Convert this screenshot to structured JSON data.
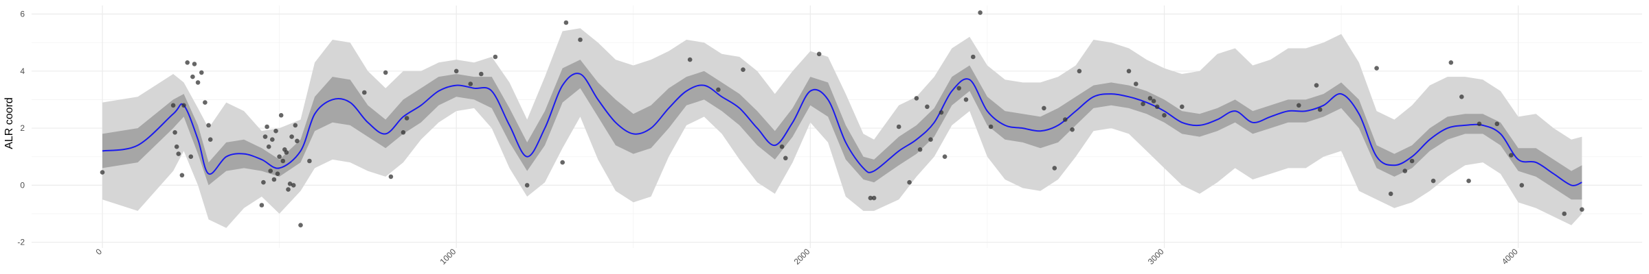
{
  "chart_data": {
    "type": "line",
    "title": "",
    "xlabel": "",
    "ylabel": "ALR coord",
    "xlim": [
      -200,
      4350
    ],
    "ylim": [
      -2.2,
      6.3
    ],
    "x_ticks": [
      0,
      1000,
      2000,
      3000,
      4000
    ],
    "y_ticks": [
      -2,
      0,
      2,
      4,
      6
    ],
    "x_tick_labels": [
      "0",
      "1000",
      "2000",
      "3000",
      "4000"
    ],
    "y_tick_labels": [
      "-2",
      "0",
      "2",
      "4",
      "6"
    ],
    "grid": true,
    "legend": "none",
    "colors": {
      "mean_line": "#1a1aee",
      "inner_band": "#a6a6a6",
      "outer_band": "#d6d6d6",
      "points": "#333333",
      "grid": "#ebebeb"
    },
    "mean": {
      "x": [
        0,
        100,
        200,
        230,
        270,
        300,
        350,
        400,
        450,
        500,
        560,
        600,
        650,
        700,
        750,
        800,
        850,
        900,
        950,
        1000,
        1050,
        1100,
        1150,
        1200,
        1250,
        1300,
        1350,
        1400,
        1450,
        1500,
        1550,
        1600,
        1650,
        1700,
        1750,
        1800,
        1850,
        1900,
        1950,
        2000,
        2050,
        2100,
        2150,
        2180,
        2250,
        2300,
        2350,
        2400,
        2450,
        2500,
        2550,
        2600,
        2650,
        2700,
        2750,
        2800,
        2850,
        2900,
        2950,
        3000,
        3050,
        3100,
        3150,
        3200,
        3250,
        3300,
        3350,
        3400,
        3450,
        3500,
        3550,
        3600,
        3650,
        3700,
        3750,
        3800,
        3850,
        3900,
        3950,
        4000,
        4050,
        4100,
        4150,
        4180
      ],
      "y": [
        1.2,
        1.4,
        2.5,
        2.8,
        1.6,
        0.4,
        1.0,
        1.1,
        0.9,
        0.6,
        1.2,
        2.5,
        3.0,
        2.9,
        2.2,
        1.8,
        2.4,
        2.8,
        3.3,
        3.5,
        3.4,
        3.3,
        2.1,
        1.0,
        2.0,
        3.5,
        3.9,
        3.0,
        2.2,
        1.8,
        2.0,
        2.7,
        3.3,
        3.5,
        3.1,
        2.7,
        2.0,
        1.4,
        2.2,
        3.3,
        3.0,
        1.5,
        0.6,
        0.5,
        1.2,
        1.6,
        2.2,
        3.3,
        3.7,
        2.6,
        2.1,
        2.0,
        1.9,
        2.1,
        2.6,
        3.1,
        3.2,
        3.1,
        2.9,
        2.6,
        2.2,
        2.1,
        2.3,
        2.6,
        2.2,
        2.4,
        2.6,
        2.6,
        2.8,
        3.2,
        2.5,
        1.0,
        0.7,
        1.0,
        1.6,
        2.0,
        2.1,
        2.1,
        1.8,
        0.9,
        0.8,
        0.4,
        0.0,
        0.1
      ]
    },
    "inner_band": {
      "lower": [
        0.6,
        0.8,
        2.0,
        2.4,
        1.1,
        0.0,
        0.5,
        0.6,
        0.5,
        0.3,
        0.8,
        1.9,
        2.2,
        2.1,
        1.7,
        1.3,
        1.8,
        2.2,
        2.8,
        3.1,
        3.0,
        2.7,
        1.5,
        0.5,
        1.4,
        2.9,
        3.4,
        2.4,
        1.4,
        1.1,
        1.3,
        2.0,
        2.8,
        3.0,
        2.6,
        2.1,
        1.4,
        0.9,
        1.7,
        2.8,
        2.4,
        0.9,
        0.2,
        0.1,
        0.7,
        1.1,
        1.7,
        2.8,
        3.3,
        2.1,
        1.6,
        1.5,
        1.3,
        1.5,
        2.1,
        2.7,
        2.8,
        2.7,
        2.5,
        2.2,
        1.8,
        1.7,
        1.9,
        2.2,
        1.8,
        2.0,
        2.2,
        2.2,
        2.4,
        2.7,
        2.0,
        0.6,
        0.3,
        0.6,
        1.2,
        1.6,
        1.8,
        1.8,
        1.4,
        0.5,
        0.3,
        -0.1,
        -0.5,
        -0.5
      ],
      "upper": [
        1.8,
        2.0,
        3.0,
        3.2,
        2.1,
        0.8,
        1.5,
        1.6,
        1.3,
        0.9,
        1.6,
        3.1,
        3.8,
        3.7,
        2.8,
        2.3,
        3.0,
        3.4,
        3.8,
        3.9,
        3.8,
        3.8,
        2.7,
        1.5,
        2.6,
        4.1,
        4.4,
        3.6,
        3.0,
        2.5,
        2.8,
        3.4,
        3.8,
        4.0,
        3.6,
        3.2,
        2.6,
        1.9,
        2.7,
        3.8,
        3.6,
        2.1,
        1.0,
        0.9,
        1.7,
        2.1,
        2.7,
        3.8,
        4.2,
        3.1,
        2.6,
        2.5,
        2.4,
        2.7,
        3.1,
        3.5,
        3.6,
        3.5,
        3.3,
        3.0,
        2.6,
        2.5,
        2.7,
        3.0,
        2.6,
        2.8,
        3.0,
        3.0,
        3.2,
        3.6,
        3.0,
        1.4,
        1.1,
        1.4,
        2.0,
        2.4,
        2.5,
        2.5,
        2.2,
        1.3,
        1.3,
        0.9,
        0.5,
        0.7
      ]
    },
    "outer_band": {
      "lower": [
        -0.5,
        -0.9,
        0.5,
        1.2,
        0.0,
        -1.2,
        -1.5,
        -0.8,
        -0.4,
        -1.0,
        -0.2,
        0.6,
        0.9,
        0.8,
        0.5,
        0.3,
        0.8,
        1.6,
        2.2,
        2.6,
        2.7,
        2.0,
        0.6,
        -0.4,
        0.1,
        1.3,
        2.4,
        0.9,
        -0.2,
        -0.6,
        -0.4,
        1.0,
        2.1,
        2.4,
        1.8,
        0.9,
        0.1,
        -0.3,
        0.8,
        2.2,
        1.5,
        -0.4,
        -0.9,
        -0.9,
        -0.5,
        0.3,
        1.0,
        2.1,
        2.6,
        1.0,
        0.2,
        -0.1,
        -0.2,
        0.2,
        1.0,
        1.9,
        2.0,
        1.8,
        1.2,
        0.6,
        0.0,
        -0.3,
        0.1,
        0.6,
        0.2,
        0.4,
        0.6,
        0.6,
        1.0,
        1.2,
        -0.2,
        -0.5,
        -0.8,
        -0.6,
        -0.2,
        0.3,
        0.7,
        0.8,
        0.4,
        -0.6,
        -0.8,
        -1.1,
        -1.4,
        -1.0
      ],
      "upper": [
        2.9,
        3.1,
        3.9,
        3.6,
        2.7,
        2.0,
        2.9,
        2.6,
        1.9,
        2.0,
        2.3,
        4.3,
        5.1,
        5.0,
        4.0,
        3.4,
        4.0,
        4.0,
        4.3,
        4.4,
        4.3,
        4.5,
        3.6,
        2.3,
        3.8,
        5.4,
        5.5,
        5.0,
        4.4,
        4.2,
        4.4,
        4.7,
        5.1,
        5.0,
        4.6,
        4.5,
        4.0,
        3.2,
        4.0,
        4.7,
        4.5,
        3.2,
        1.8,
        1.6,
        2.8,
        3.1,
        3.8,
        4.8,
        5.2,
        4.2,
        3.7,
        3.6,
        3.6,
        3.8,
        4.2,
        5.1,
        5.0,
        4.8,
        4.4,
        4.1,
        3.9,
        4.0,
        4.6,
        4.8,
        4.2,
        4.4,
        4.8,
        4.8,
        5.0,
        5.3,
        4.3,
        2.6,
        2.3,
        2.8,
        3.5,
        3.8,
        3.8,
        3.7,
        3.3,
        2.4,
        2.5,
        2.0,
        1.6,
        1.7
      ]
    },
    "points": {
      "x": [
        0,
        200,
        205,
        210,
        215,
        225,
        230,
        240,
        250,
        255,
        260,
        270,
        280,
        290,
        300,
        305,
        450,
        455,
        460,
        465,
        470,
        475,
        480,
        485,
        490,
        495,
        500,
        505,
        510,
        515,
        520,
        525,
        530,
        535,
        540,
        545,
        550,
        560,
        585,
        740,
        800,
        815,
        850,
        860,
        1000,
        1040,
        1070,
        1110,
        1200,
        1300,
        1310,
        1350,
        1660,
        1740,
        1810,
        1920,
        1930,
        2025,
        2170,
        2180,
        2250,
        2280,
        2300,
        2310,
        2330,
        2340,
        2370,
        2380,
        2420,
        2440,
        2460,
        2480,
        2510,
        2660,
        2690,
        2720,
        2740,
        2760,
        2900,
        2920,
        2940,
        2960,
        2970,
        2980,
        3000,
        3050,
        3380,
        3430,
        3440,
        3600,
        3640,
        3680,
        3700,
        3760,
        3810,
        3840,
        3860,
        3890,
        3940,
        3980,
        4010,
        4130,
        4180
      ],
      "y": [
        0.45,
        2.8,
        1.85,
        1.35,
        1.1,
        0.35,
        2.8,
        4.3,
        1.0,
        3.8,
        4.25,
        3.6,
        3.95,
        2.9,
        2.1,
        1.6,
        -0.7,
        0.1,
        1.7,
        2.05,
        1.35,
        0.5,
        1.6,
        0.2,
        1.9,
        0.4,
        1.0,
        2.45,
        0.85,
        1.25,
        1.15,
        -0.15,
        0.05,
        1.7,
        0.0,
        2.1,
        1.55,
        -1.4,
        0.85,
        3.25,
        3.95,
        0.3,
        1.85,
        2.35,
        4.0,
        3.55,
        3.9,
        4.5,
        0.0,
        0.8,
        5.7,
        5.1,
        4.4,
        3.35,
        4.05,
        1.35,
        0.95,
        4.6,
        -0.45,
        -0.45,
        2.05,
        0.1,
        3.05,
        1.25,
        2.75,
        1.6,
        2.55,
        1.0,
        3.4,
        3.0,
        4.5,
        6.05,
        2.05,
        2.7,
        0.6,
        2.3,
        1.95,
        4.0,
        4.0,
        3.55,
        2.85,
        3.05,
        2.95,
        2.75,
        2.45,
        2.75,
        2.8,
        3.5,
        2.65,
        4.1,
        -0.3,
        0.5,
        0.85,
        0.15,
        4.3,
        3.1,
        0.15,
        2.15,
        2.15,
        1.05,
        0.0,
        -1.0,
        -0.85
      ]
    }
  }
}
